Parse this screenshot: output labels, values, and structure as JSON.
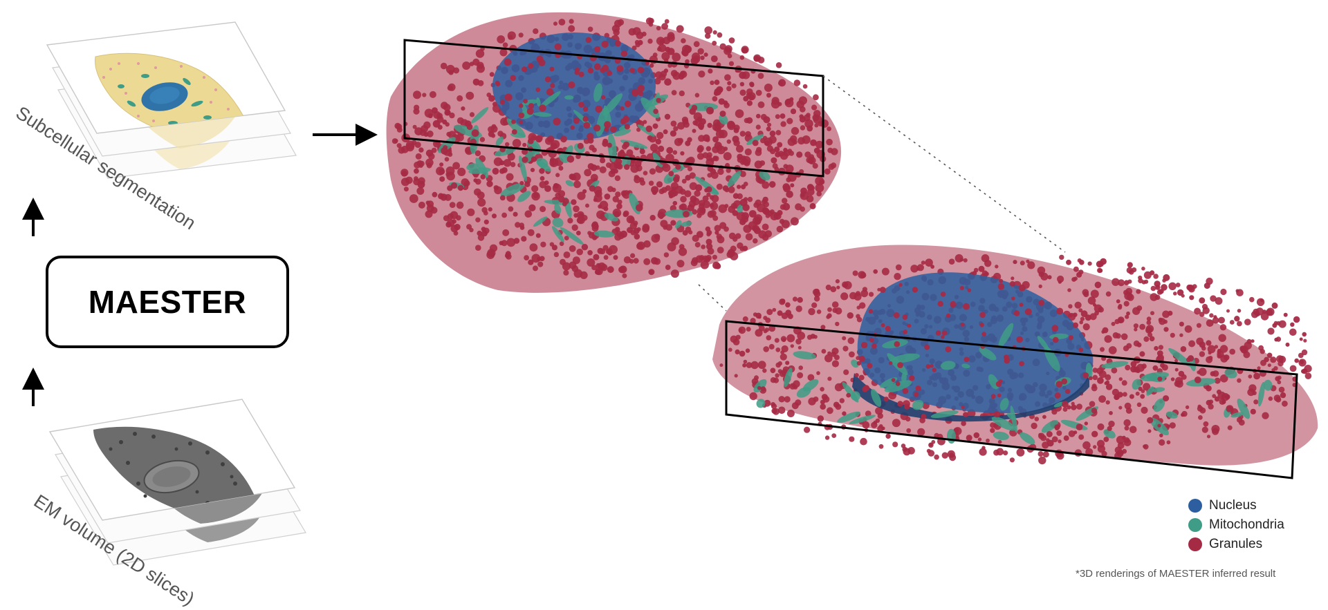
{
  "pipeline": {
    "top_label": "Subcellular segmentation",
    "model_label": "MAESTER",
    "bottom_label": "EM volume (2D slices)"
  },
  "legend": [
    {
      "label": "Nucleus",
      "color": "#2d5fa0"
    },
    {
      "label": "Mitochondria",
      "color": "#3f9c86"
    },
    {
      "label": "Granules",
      "color": "#a52a44"
    }
  ],
  "footnote": "*3D renderings of MAESTER  inferred result",
  "colors": {
    "nucleus": "#2d5fa0",
    "mitochondria": "#3f9c86",
    "granules": "#a52a44",
    "cytoplasm": "#ecd994"
  }
}
